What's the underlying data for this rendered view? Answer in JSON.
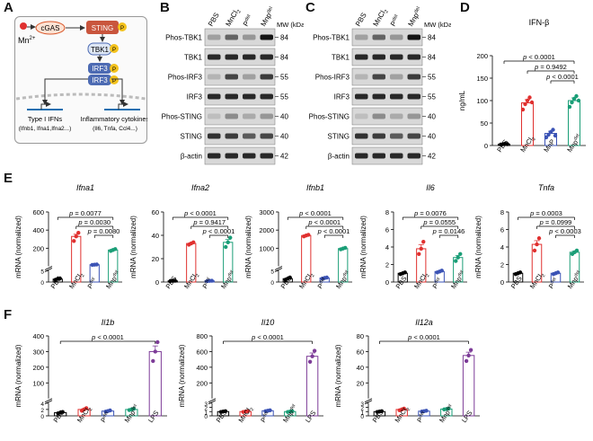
{
  "panels": {
    "A": "A",
    "B": "B",
    "C": "C",
    "D": "D",
    "E": "E",
    "F": "F"
  },
  "schematic": {
    "mn": "Mn",
    "mn_sup": "2+",
    "cgas": "cGAS",
    "sting": "STING",
    "tbk1": "TBK1",
    "irf3": "IRF3",
    "p": "P",
    "type1_title": "Type I IFNs",
    "type1_genes": "(Ifnb1, Ifna1,Ifna2...)",
    "inflam_title": "Inflammatory cytokines",
    "inflam_genes": "(Il6, Tnfa, Ccl4...)"
  },
  "blots": {
    "mw_label": "MW (kDa)",
    "B": {
      "lanes": [
        "PBS",
        "MnCl2",
        "Pdel",
        "Mnpdel"
      ],
      "rows": [
        {
          "label": "Phos-TBK1",
          "mw": "84"
        },
        {
          "label": "TBK1",
          "mw": "84"
        },
        {
          "label": "Phos-IRF3",
          "mw": "55"
        },
        {
          "label": "IRF3",
          "mw": "55"
        },
        {
          "label": "Phos-STING",
          "mw": "40"
        },
        {
          "label": "STING",
          "mw": "40"
        },
        {
          "label": "β-actin",
          "mw": "42"
        }
      ]
    },
    "C": {
      "lanes": [
        "PBS",
        "MnCl2",
        "Pdel",
        "Mnpdel"
      ],
      "rows": [
        {
          "label": "Phos-TBK1",
          "mw": "84"
        },
        {
          "label": "TBK1",
          "mw": "84"
        },
        {
          "label": "Phos-IRF3",
          "mw": "55"
        },
        {
          "label": "IRF3",
          "mw": "55"
        },
        {
          "label": "Phos-STING",
          "mw": "40"
        },
        {
          "label": "STING",
          "mw": "40"
        },
        {
          "label": "β-actin",
          "mw": "42"
        }
      ]
    }
  },
  "chart_data": [
    {
      "id": "D",
      "type": "bar",
      "title": "IFN-β",
      "ylabel": "ng/mL",
      "categories": [
        "PBS",
        "MnCl2",
        "MnP",
        "Mnpdel"
      ],
      "ylim": [
        0,
        200
      ],
      "yticks": [
        0,
        50,
        100,
        150,
        200
      ],
      "values": [
        3,
        95,
        27,
        100
      ],
      "colors": [
        "#000000",
        "#e0302f",
        "#3b53b5",
        "#1a9e77"
      ],
      "points": [
        [
          2,
          3,
          4,
          3
        ],
        [
          80,
          92,
          100,
          107,
          96
        ],
        [
          18,
          24,
          30,
          35,
          22
        ],
        [
          86,
          96,
          104,
          110,
          100
        ]
      ],
      "brackets": [
        {
          "from": 0,
          "to": 3,
          "label": "p < 0.0001"
        },
        {
          "from": 1,
          "to": 3,
          "label": "p = 0.9492"
        },
        {
          "from": 2,
          "to": 3,
          "label": "p < 0.0001"
        }
      ]
    },
    {
      "id": "E1",
      "type": "bar",
      "title": "Ifna1",
      "ylabel": "mRNA (normalized)",
      "categories": [
        "PBS",
        "MnCl2",
        "Pdel",
        "Mnpdel"
      ],
      "ylim": [
        0,
        600
      ],
      "yticks": [
        0,
        200,
        400,
        600
      ],
      "axis_break": true,
      "break_ticks": [
        "0",
        "5"
      ],
      "values": [
        1.3,
        330,
        18,
        180
      ],
      "colors": [
        "#000000",
        "#e0302f",
        "#3b53b5",
        "#1a9e77"
      ],
      "points": [
        [
          1,
          1.4,
          1.6
        ],
        [
          280,
          330,
          370
        ],
        [
          16,
          18,
          20
        ],
        [
          170,
          180,
          190
        ]
      ],
      "brackets": [
        {
          "from": 0,
          "to": 3,
          "label": "p = 0.0077"
        },
        {
          "from": 1,
          "to": 3,
          "label": "p = 0.0030"
        },
        {
          "from": 2,
          "to": 3,
          "label": "p = 0.0080"
        }
      ]
    },
    {
      "id": "E2",
      "type": "bar",
      "title": "Ifna2",
      "ylabel": "mRNA (normalized)",
      "categories": [
        "PBS",
        "MnCl2",
        "Pdel",
        "Mnpdel"
      ],
      "ylim": [
        0,
        60
      ],
      "yticks": [
        0,
        20,
        40,
        60
      ],
      "values": [
        1,
        33,
        1,
        34
      ],
      "colors": [
        "#000000",
        "#e0302f",
        "#3b53b5",
        "#1a9e77"
      ],
      "points": [
        [
          0.9,
          1,
          1.1
        ],
        [
          32,
          33,
          34
        ],
        [
          0.8,
          1,
          1.1
        ],
        [
          30,
          34,
          38
        ]
      ],
      "brackets": [
        {
          "from": 0,
          "to": 3,
          "label": "p < 0.0001"
        },
        {
          "from": 1,
          "to": 3,
          "label": "p = 0.9417"
        },
        {
          "from": 2,
          "to": 3,
          "label": "p < 0.0001"
        }
      ]
    },
    {
      "id": "E3",
      "type": "bar",
      "title": "Ifnb1",
      "ylabel": "mRNA (normalized)",
      "categories": [
        "PBS",
        "MnCl2",
        "Pdel",
        "Mnpdel"
      ],
      "ylim": [
        0,
        3000
      ],
      "yticks": [
        0,
        1000,
        2000,
        3000
      ],
      "axis_break": true,
      "break_ticks": [
        "0",
        "5"
      ],
      "values": [
        1.5,
        1700,
        1.8,
        980
      ],
      "colors": [
        "#000000",
        "#e0302f",
        "#3b53b5",
        "#1a9e77"
      ],
      "points": [
        [
          1,
          1.5,
          2
        ],
        [
          1650,
          1700,
          1740
        ],
        [
          1.5,
          1.8,
          2
        ],
        [
          940,
          980,
          1020
        ]
      ],
      "brackets": [
        {
          "from": 0,
          "to": 3,
          "label": "p < 0.0001"
        },
        {
          "from": 1,
          "to": 3,
          "label": "p < 0.0001"
        },
        {
          "from": 2,
          "to": 3,
          "label": "p < 0.0001"
        }
      ]
    },
    {
      "id": "E4",
      "type": "bar",
      "title": "Il6",
      "ylabel": "mRNA (normalized)",
      "categories": [
        "PBS",
        "MnCl2",
        "Pdel",
        "Mnpdel"
      ],
      "ylim": [
        0,
        8
      ],
      "yticks": [
        0,
        2,
        4,
        6,
        8
      ],
      "values": [
        1,
        3.8,
        1.2,
        2.8
      ],
      "colors": [
        "#000000",
        "#e0302f",
        "#3b53b5",
        "#1a9e77"
      ],
      "points": [
        [
          0.9,
          1,
          1.1
        ],
        [
          3.2,
          3.8,
          4.6
        ],
        [
          1.1,
          1.2,
          1.3
        ],
        [
          2.4,
          2.8,
          3.2
        ]
      ],
      "brackets": [
        {
          "from": 0,
          "to": 3,
          "label": "p = 0.0076"
        },
        {
          "from": 1,
          "to": 3,
          "label": "p = 0.0555"
        },
        {
          "from": 2,
          "to": 3,
          "label": "p = 0.0146"
        }
      ]
    },
    {
      "id": "E5",
      "type": "bar",
      "title": "Tnfa",
      "ylabel": "mRNA (normalized)",
      "categories": [
        "PBS",
        "MnCl2",
        "Pdel",
        "Mnpdel"
      ],
      "ylim": [
        0,
        8
      ],
      "yticks": [
        0,
        2,
        4,
        6,
        8
      ],
      "values": [
        1,
        4.3,
        1,
        3.4
      ],
      "colors": [
        "#000000",
        "#e0302f",
        "#3b53b5",
        "#1a9e77"
      ],
      "points": [
        [
          0.9,
          1,
          1.1
        ],
        [
          3.6,
          4.3,
          5.0
        ],
        [
          0.9,
          1,
          1.1
        ],
        [
          3.2,
          3.4,
          3.6
        ]
      ],
      "brackets": [
        {
          "from": 0,
          "to": 3,
          "label": "p = 0.0003"
        },
        {
          "from": 1,
          "to": 3,
          "label": "p = 0.0999"
        },
        {
          "from": 2,
          "to": 3,
          "label": "p < 0.0003"
        }
      ]
    },
    {
      "id": "F1",
      "type": "bar",
      "title": "Il1b",
      "ylabel": "mRNA (normalized)",
      "categories": [
        "PBS",
        "MnCl2",
        "Pdel",
        "Mnpdel",
        "LPS"
      ],
      "ylim": [
        0,
        400
      ],
      "yticks": [
        0,
        100,
        200,
        300,
        400
      ],
      "axis_break": true,
      "break_ticks": [
        "0",
        "2",
        "4"
      ],
      "values": [
        1,
        2,
        1.5,
        2,
        300
      ],
      "colors": [
        "#000000",
        "#e0302f",
        "#3b53b5",
        "#1a9e77",
        "#7d3c98"
      ],
      "points": [
        [
          0.8,
          1,
          1.2
        ],
        [
          1.6,
          2,
          2.4
        ],
        [
          1.3,
          1.5,
          1.7
        ],
        [
          1.8,
          2,
          2.2
        ],
        [
          240,
          300,
          360
        ]
      ],
      "brackets": [
        {
          "from": 0,
          "to": 4,
          "label": "p < 0.0001"
        }
      ]
    },
    {
      "id": "F2",
      "type": "bar",
      "title": "Il10",
      "ylabel": "mRNA (normalized)",
      "categories": [
        "PBS",
        "MnCl2",
        "Pdel",
        "Mnpdel",
        "LPS"
      ],
      "ylim": [
        0,
        800
      ],
      "yticks": [
        0,
        200,
        400,
        600,
        800
      ],
      "axis_break": true,
      "break_ticks": [
        "0",
        "1",
        "2",
        "3"
      ],
      "values": [
        1,
        1,
        1.2,
        1,
        540
      ],
      "colors": [
        "#000000",
        "#e0302f",
        "#3b53b5",
        "#1a9e77",
        "#7d3c98"
      ],
      "points": [
        [
          0.9,
          1,
          1.1
        ],
        [
          0.9,
          1,
          1.1
        ],
        [
          1.1,
          1.2,
          1.3
        ],
        [
          0.9,
          1,
          1.1
        ],
        [
          470,
          540,
          610
        ]
      ],
      "brackets": [
        {
          "from": 0,
          "to": 4,
          "label": "p < 0.0001"
        }
      ]
    },
    {
      "id": "F3",
      "type": "bar",
      "title": "Il12a",
      "ylabel": "mRNA (normalized)",
      "categories": [
        "PBS",
        "MnCl2",
        "Pdel",
        "Mnpdel",
        "LPS"
      ],
      "ylim": [
        0,
        80
      ],
      "yticks": [
        0,
        20,
        40,
        60,
        80
      ],
      "axis_break": true,
      "break_ticks": [
        "0",
        "1",
        "2",
        "3"
      ],
      "values": [
        1,
        1.5,
        1.1,
        1.6,
        55
      ],
      "colors": [
        "#000000",
        "#e0302f",
        "#3b53b5",
        "#1a9e77",
        "#7d3c98"
      ],
      "points": [
        [
          0.9,
          1,
          1.1
        ],
        [
          1.3,
          1.5,
          1.7
        ],
        [
          1,
          1.1,
          1.2
        ],
        [
          1.5,
          1.6,
          1.7
        ],
        [
          48,
          55,
          62
        ]
      ],
      "brackets": [
        {
          "from": 0,
          "to": 4,
          "label": "p < 0.0001"
        }
      ]
    }
  ]
}
